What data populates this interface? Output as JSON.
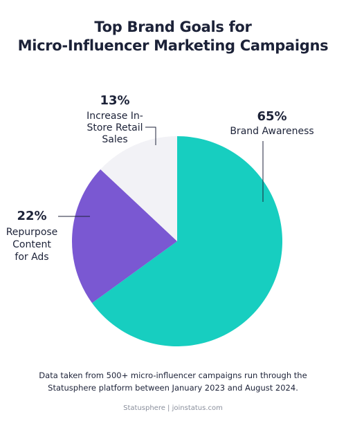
{
  "title_lines": [
    "Top Brand Goals for",
    "Micro-Influencer Marketing Campaigns"
  ],
  "note_lines": [
    "Data taken from 500+ micro-influencer campaigns run through the",
    "Statusphere platform between January 2023 and August 2024."
  ],
  "footer": "Statusphere | joinstatus.com",
  "chart_data": {
    "type": "pie",
    "title": "Top Brand Goals for Micro-Influencer Marketing Campaigns",
    "slices": [
      {
        "label_lines": [
          "Brand Awareness"
        ],
        "value": 65,
        "pct_label": "65%",
        "color": "#17cec0"
      },
      {
        "label_lines": [
          "Repurpose",
          "Content",
          "for Ads"
        ],
        "value": 22,
        "pct_label": "22%",
        "color": "#7a58d2"
      },
      {
        "label_lines": [
          "Increase In-",
          "Store Retail",
          "Sales"
        ],
        "value": 13,
        "pct_label": "13%",
        "color": "#f2f2f6"
      }
    ]
  }
}
